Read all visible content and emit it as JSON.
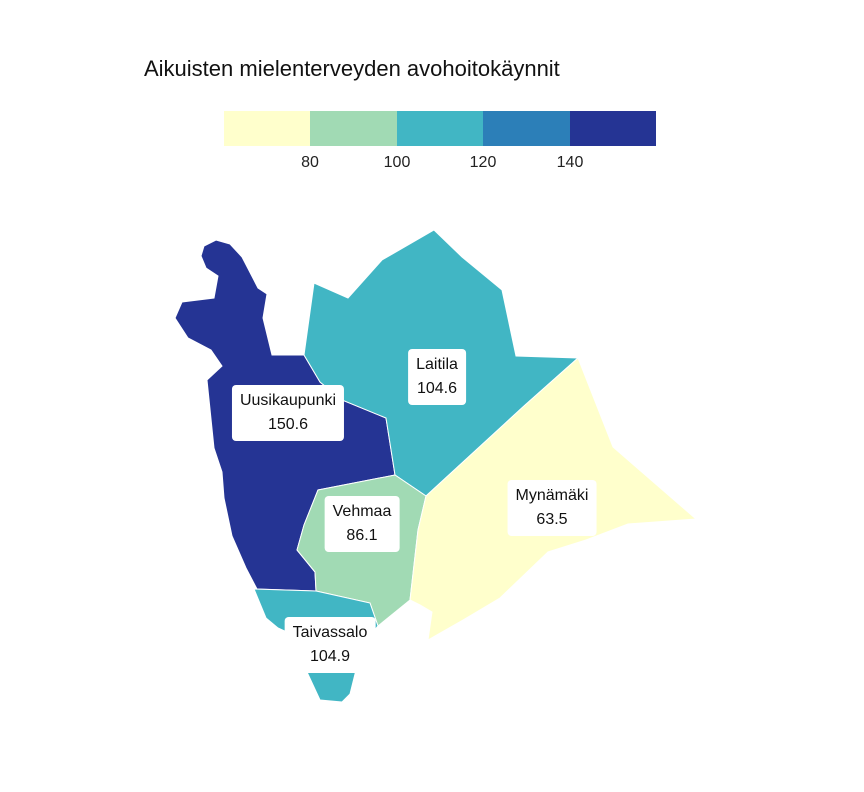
{
  "title": "Aikuisten mielenterveyden avohoitokäynnit",
  "legend": {
    "colors": [
      "#ffffcc",
      "#a1dab4",
      "#41b6c4",
      "#2c7fb8",
      "#253494"
    ],
    "ticks": [
      "80",
      "100",
      "120",
      "140"
    ]
  },
  "regions": [
    {
      "name": "Uusikaupunki",
      "value": "150.6",
      "color": "#253494"
    },
    {
      "name": "Laitila",
      "value": "104.6",
      "color": "#41b6c4"
    },
    {
      "name": "Vehmaa",
      "value": "86.1",
      "color": "#a1dab4"
    },
    {
      "name": "Mynämäki",
      "value": "63.5",
      "color": "#ffffcc"
    },
    {
      "name": "Taivassalo",
      "value": "104.9",
      "color": "#41b6c4"
    }
  ]
}
